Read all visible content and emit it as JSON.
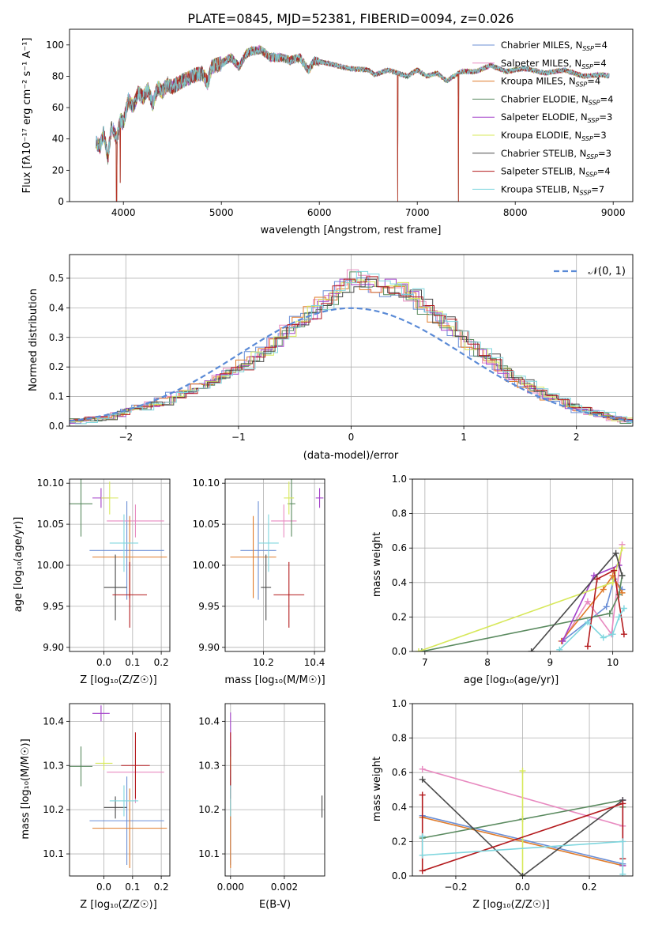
{
  "chart_data": [
    {
      "type": "line",
      "title": "PLATE=0845, MJD=52381, FIBERID=0094, z=0.026",
      "xlabel": "wavelength [Angstrom, rest frame]",
      "ylabel": "Flux [fλ10⁻¹⁷ erg cm⁻² s⁻¹ A⁻¹]",
      "xlim": [
        3450,
        9200
      ],
      "ylim": [
        0,
        110
      ],
      "xticks": [
        4000,
        5000,
        6000,
        7000,
        8000,
        9000
      ],
      "yticks": [
        0,
        20,
        40,
        60,
        80,
        100
      ],
      "legend_position": "upper-right",
      "grid": false,
      "spectrum_nodes": [
        [
          3720,
          38
        ],
        [
          3760,
          35
        ],
        [
          3800,
          44
        ],
        [
          3840,
          28
        ],
        [
          3880,
          48
        ],
        [
          3930,
          40
        ],
        [
          3970,
          52
        ],
        [
          4000,
          50
        ],
        [
          4050,
          65
        ],
        [
          4100,
          60
        ],
        [
          4150,
          70
        ],
        [
          4200,
          66
        ],
        [
          4250,
          72
        ],
        [
          4300,
          62
        ],
        [
          4350,
          73
        ],
        [
          4400,
          70
        ],
        [
          4450,
          75
        ],
        [
          4500,
          73
        ],
        [
          4600,
          77
        ],
        [
          4700,
          80
        ],
        [
          4800,
          82
        ],
        [
          4860,
          76
        ],
        [
          4900,
          86
        ],
        [
          5000,
          88
        ],
        [
          5100,
          92
        ],
        [
          5180,
          86
        ],
        [
          5250,
          94
        ],
        [
          5300,
          96
        ],
        [
          5400,
          97
        ],
        [
          5500,
          92
        ],
        [
          5600,
          92
        ],
        [
          5700,
          90
        ],
        [
          5800,
          92
        ],
        [
          5890,
          84
        ],
        [
          5950,
          90
        ],
        [
          6100,
          88
        ],
        [
          6300,
          85
        ],
        [
          6500,
          84
        ],
        [
          6563,
          81
        ],
        [
          6700,
          84
        ],
        [
          6900,
          80
        ],
        [
          7000,
          84
        ],
        [
          7100,
          80
        ],
        [
          7200,
          82
        ],
        [
          7300,
          77
        ],
        [
          7450,
          83
        ],
        [
          7600,
          83
        ],
        [
          7750,
          87
        ],
        [
          7900,
          83
        ],
        [
          8100,
          85
        ],
        [
          8300,
          82
        ],
        [
          8500,
          84
        ],
        [
          8700,
          80
        ],
        [
          8900,
          81
        ],
        [
          8960,
          80
        ]
      ],
      "spikes": [
        {
          "x": 3930,
          "y": 0
        },
        {
          "x": 3968,
          "y": 12
        },
        {
          "x": 6800,
          "y": 0
        },
        {
          "x": 7420,
          "y": 0
        }
      ],
      "series": [
        {
          "name": "Chabrier MILES, N_SSP=4",
          "color": "#6b8fd6"
        },
        {
          "name": "Salpeter MILES, N_SSP=4",
          "color": "#e88ac0"
        },
        {
          "name": "Kroupa MILES, N_SSP=4",
          "color": "#e07b2a"
        },
        {
          "name": "Chabrier ELODIE, N_SSP=4",
          "color": "#5a8a5f"
        },
        {
          "name": "Salpeter ELODIE, N_SSP=3",
          "color": "#a340c9"
        },
        {
          "name": "Kroupa ELODIE, N_SSP=3",
          "color": "#d7e85a"
        },
        {
          "name": "Chabrier STELIB, N_SSP=3",
          "color": "#4a4a4a"
        },
        {
          "name": "Salpeter STELIB, N_SSP=4",
          "color": "#b3191c"
        },
        {
          "name": "Kroupa STELIB, N_SSP=7",
          "color": "#7fd6de"
        }
      ]
    },
    {
      "type": "line",
      "xlabel": "(data-model)/error",
      "ylabel": "Normed distribution",
      "xlim": [
        -2.5,
        2.5
      ],
      "ylim": [
        0,
        0.58
      ],
      "xticks": [
        -2,
        -1,
        0,
        1,
        2
      ],
      "yticks": [
        0.0,
        0.1,
        0.2,
        0.3,
        0.4,
        0.5
      ],
      "grid": true,
      "legend": "𝒩(0, 1)",
      "legend_position": "upper-right",
      "histogram_bins": {
        "start": -2.5,
        "width": 0.1
      },
      "histogram_base": [
        0.018,
        0.02,
        0.024,
        0.03,
        0.04,
        0.052,
        0.062,
        0.072,
        0.085,
        0.1,
        0.115,
        0.13,
        0.145,
        0.165,
        0.185,
        0.205,
        0.23,
        0.26,
        0.29,
        0.32,
        0.35,
        0.38,
        0.41,
        0.44,
        0.47,
        0.49,
        0.48,
        0.47,
        0.46,
        0.45,
        0.43,
        0.4,
        0.37,
        0.34,
        0.31,
        0.28,
        0.25,
        0.22,
        0.19,
        0.16,
        0.14,
        0.12,
        0.1,
        0.085,
        0.07,
        0.057,
        0.046,
        0.037,
        0.028,
        0.02
      ],
      "series_colors": [
        "#6b8fd6",
        "#e88ac0",
        "#e07b2a",
        "#5a8a5f",
        "#a340c9",
        "#d7e85a",
        "#4a4a4a",
        "#b3191c",
        "#7fd6de"
      ],
      "normal_curve_color": "#5a8ad6"
    },
    {
      "type": "scatter",
      "xlabel": "Z [log₁₀(Z/Z☉)]",
      "ylabel": "age  [log₁₀(age/yr)]",
      "xlim": [
        -0.12,
        0.23
      ],
      "ylim": [
        9.895,
        10.105
      ],
      "xticks": [
        0.0,
        0.1,
        0.2
      ],
      "yticks": [
        9.9,
        9.95,
        10.0,
        10.05,
        10.1
      ],
      "grid": true,
      "points": [
        {
          "x": 0.08,
          "y": 10.018,
          "xerr": 0.13,
          "yerr": 0.06,
          "color": "#6b8fd6"
        },
        {
          "x": 0.11,
          "y": 10.054,
          "xerr": 0.1,
          "yerr": 0.02,
          "color": "#e88ac0"
        },
        {
          "x": 0.09,
          "y": 10.01,
          "xerr": 0.13,
          "yerr": 0.05,
          "color": "#e07b2a"
        },
        {
          "x": -0.08,
          "y": 10.075,
          "xerr": 0.04,
          "yerr": 0.04,
          "color": "#5a8a5f"
        },
        {
          "x": -0.01,
          "y": 10.082,
          "xerr": 0.03,
          "yerr": 0.012,
          "color": "#a340c9"
        },
        {
          "x": 0.02,
          "y": 10.082,
          "xerr": 0.03,
          "yerr": 0.02,
          "color": "#d7e85a"
        },
        {
          "x": 0.04,
          "y": 9.973,
          "xerr": 0.04,
          "yerr": 0.04,
          "color": "#4a4a4a"
        },
        {
          "x": 0.09,
          "y": 9.964,
          "xerr": 0.06,
          "yerr": 0.04,
          "color": "#b3191c"
        },
        {
          "x": 0.07,
          "y": 10.027,
          "xerr": 0.05,
          "yerr": 0.035,
          "color": "#7fd6de"
        }
      ]
    },
    {
      "type": "scatter",
      "xlabel": "mass [log₁₀(M/M☉)]",
      "xlim": [
        10.05,
        10.44
      ],
      "ylim": [
        9.895,
        10.105
      ],
      "xticks": [
        10.2,
        10.4
      ],
      "yticks": [
        9.9,
        9.95,
        10.0,
        10.05,
        10.1
      ],
      "grid": true,
      "points": [
        {
          "x": 10.18,
          "y": 10.018,
          "xerr": 0.07,
          "yerr": 0.06,
          "color": "#6b8fd6"
        },
        {
          "x": 10.28,
          "y": 10.054,
          "xerr": 0.05,
          "yerr": 0.02,
          "color": "#e88ac0"
        },
        {
          "x": 10.16,
          "y": 10.01,
          "xerr": 0.09,
          "yerr": 0.05,
          "color": "#e07b2a"
        },
        {
          "x": 10.31,
          "y": 10.075,
          "xerr": 0.015,
          "yerr": 0.04,
          "color": "#5a8a5f"
        },
        {
          "x": 10.42,
          "y": 10.082,
          "xerr": 0.015,
          "yerr": 0.012,
          "color": "#a340c9"
        },
        {
          "x": 10.3,
          "y": 10.082,
          "xerr": 0.02,
          "yerr": 0.02,
          "color": "#d7e85a"
        },
        {
          "x": 10.21,
          "y": 9.973,
          "xerr": 0.02,
          "yerr": 0.04,
          "color": "#4a4a4a"
        },
        {
          "x": 10.3,
          "y": 9.964,
          "xerr": 0.06,
          "yerr": 0.04,
          "color": "#b3191c"
        },
        {
          "x": 10.22,
          "y": 10.027,
          "xerr": 0.04,
          "yerr": 0.035,
          "color": "#7fd6de"
        }
      ]
    },
    {
      "type": "line",
      "xlabel": "age  [log₁₀(age/yr)]",
      "ylabel": "mass weight",
      "xlim": [
        6.8,
        10.32
      ],
      "ylim": [
        0.0,
        1.0
      ],
      "xticks": [
        7,
        8,
        9,
        10
      ],
      "yticks": [
        0.0,
        0.2,
        0.4,
        0.6,
        0.8,
        1.0
      ],
      "grid": true,
      "series": [
        {
          "color": "#6b8fd6",
          "x": [
            9.2,
            9.9,
            10.02,
            10.15
          ],
          "y": [
            0.06,
            0.26,
            0.42,
            0.36
          ]
        },
        {
          "color": "#e88ac0",
          "x": [
            9.2,
            9.6,
            9.98,
            10.15
          ],
          "y": [
            0.06,
            0.29,
            0.1,
            0.62
          ]
        },
        {
          "color": "#e07b2a",
          "x": [
            9.18,
            9.85,
            10.0,
            10.15
          ],
          "y": [
            0.06,
            0.36,
            0.44,
            0.34
          ]
        },
        {
          "color": "#5a8a5f",
          "x": [
            6.95,
            9.95,
            10.1,
            10.15
          ],
          "y": [
            0.0,
            0.22,
            0.33,
            0.44
          ]
        },
        {
          "color": "#a340c9",
          "x": [
            9.2,
            9.7,
            10.1
          ],
          "y": [
            0.06,
            0.44,
            0.5
          ]
        },
        {
          "color": "#d7e85a",
          "x": [
            6.9,
            10.0,
            10.15
          ],
          "y": [
            0.0,
            0.4,
            0.6
          ]
        },
        {
          "color": "#4a4a4a",
          "x": [
            8.7,
            10.05,
            10.15
          ],
          "y": [
            0.0,
            0.57,
            0.44
          ]
        },
        {
          "color": "#b3191c",
          "x": [
            9.6,
            9.75,
            10.02,
            10.18
          ],
          "y": [
            0.03,
            0.42,
            0.47,
            0.1
          ]
        },
        {
          "color": "#7fd6de",
          "x": [
            9.15,
            9.6,
            9.85,
            10.0,
            10.1,
            10.18
          ],
          "y": [
            0.01,
            0.17,
            0.08,
            0.1,
            0.2,
            0.25
          ]
        }
      ]
    },
    {
      "type": "scatter",
      "xlabel": "Z [log₁₀(Z/Z☉)]",
      "ylabel": "mass [log₁₀(M/M☉)]",
      "xlim": [
        -0.12,
        0.23
      ],
      "ylim": [
        10.05,
        10.44
      ],
      "xticks": [
        0.0,
        0.1,
        0.2
      ],
      "yticks": [
        10.1,
        10.2,
        10.3,
        10.4
      ],
      "grid": true,
      "points": [
        {
          "x": 0.08,
          "y": 10.175,
          "xerr": 0.13,
          "yerr": 0.1,
          "color": "#6b8fd6"
        },
        {
          "x": 0.11,
          "y": 10.285,
          "xerr": 0.1,
          "yerr": 0.07,
          "color": "#e88ac0"
        },
        {
          "x": 0.09,
          "y": 10.158,
          "xerr": 0.13,
          "yerr": 0.09,
          "color": "#e07b2a"
        },
        {
          "x": -0.08,
          "y": 10.298,
          "xerr": 0.04,
          "yerr": 0.045,
          "color": "#5a8a5f"
        },
        {
          "x": -0.01,
          "y": 10.418,
          "xerr": 0.03,
          "yerr": 0.018,
          "color": "#a340c9"
        },
        {
          "x": 0.0,
          "y": 10.305,
          "xerr": 0.03,
          "yerr": 0.015,
          "color": "#d7e85a"
        },
        {
          "x": 0.04,
          "y": 10.205,
          "xerr": 0.04,
          "yerr": 0.025,
          "color": "#4a4a4a"
        },
        {
          "x": 0.11,
          "y": 10.3,
          "xerr": 0.05,
          "yerr": 0.075,
          "color": "#b3191c"
        },
        {
          "x": 0.07,
          "y": 10.22,
          "xerr": 0.05,
          "yerr": 0.035,
          "color": "#7fd6de"
        }
      ]
    },
    {
      "type": "scatter",
      "xlabel": "E(B-V)",
      "xlim": [
        -0.0002,
        0.0035
      ],
      "ylim": [
        10.05,
        10.44
      ],
      "xticks": [
        0.0,
        0.002
      ],
      "yticks": [
        10.1,
        10.2,
        10.3,
        10.4
      ],
      "grid": true,
      "points": [
        {
          "x": 0.0,
          "y": 10.175,
          "yerr": 0.1,
          "color": "#6b8fd6"
        },
        {
          "x": 0.0,
          "y": 10.285,
          "yerr": 0.07,
          "color": "#e88ac0"
        },
        {
          "x": 0.0,
          "y": 10.158,
          "yerr": 0.09,
          "color": "#e07b2a"
        },
        {
          "x": 0.0,
          "y": 10.298,
          "yerr": 0.045,
          "color": "#5a8a5f"
        },
        {
          "x": 0.0,
          "y": 10.38,
          "yerr": 0.04,
          "color": "#a340c9"
        },
        {
          "x": 0.0,
          "y": 10.305,
          "yerr": 0.015,
          "color": "#d7e85a"
        },
        {
          "x": 0.0034,
          "y": 10.207,
          "yerr": 0.025,
          "color": "#4a4a4a"
        },
        {
          "x": 0.0,
          "y": 10.3,
          "yerr": 0.075,
          "color": "#b3191c"
        },
        {
          "x": 0.0,
          "y": 10.22,
          "yerr": 0.035,
          "color": "#7fd6de"
        }
      ]
    },
    {
      "type": "line",
      "xlabel": "Z [log₁₀(Z/Z☉)]",
      "ylabel": "mass weight",
      "xlim": [
        -0.33,
        0.33
      ],
      "ylim": [
        0.0,
        1.0
      ],
      "xticks": [
        -0.2,
        0.0,
        0.2
      ],
      "yticks": [
        0.0,
        0.2,
        0.4,
        0.6,
        0.8,
        1.0
      ],
      "grid": true,
      "series": [
        {
          "color": "#6b8fd6",
          "x": [
            -0.3,
            0.3
          ],
          "y": [
            0.35,
            0.07
          ]
        },
        {
          "color": "#e88ac0",
          "x": [
            -0.3,
            0.3
          ],
          "y": [
            0.62,
            0.29
          ]
        },
        {
          "color": "#e07b2a",
          "x": [
            -0.3,
            0.3
          ],
          "y": [
            0.34,
            0.06
          ]
        },
        {
          "color": "#5a8a5f",
          "x": [
            -0.3,
            0.0,
            0.3,
            0.3
          ],
          "y": [
            0.22,
            0.33,
            0.44,
            0.4
          ]
        },
        {
          "color": "#a340c9",
          "x": [
            0.3,
            0.3
          ],
          "y": [
            0.06,
            0.44
          ]
        },
        {
          "color": "#d7e85a",
          "x": [
            0.0,
            0.0
          ],
          "y": [
            0.0,
            0.61
          ]
        },
        {
          "color": "#4a4a4a",
          "x": [
            -0.3,
            0.0,
            0.3
          ],
          "y": [
            0.56,
            0.0,
            0.44
          ]
        },
        {
          "color": "#b3191c",
          "x": [
            -0.3,
            -0.3,
            0.3,
            0.3
          ],
          "y": [
            0.47,
            0.03,
            0.42,
            0.1
          ]
        },
        {
          "color": "#7fd6de",
          "x": [
            -0.3,
            -0.3,
            0.3,
            0.3
          ],
          "y": [
            0.23,
            0.12,
            0.2,
            0.01
          ]
        }
      ]
    }
  ]
}
